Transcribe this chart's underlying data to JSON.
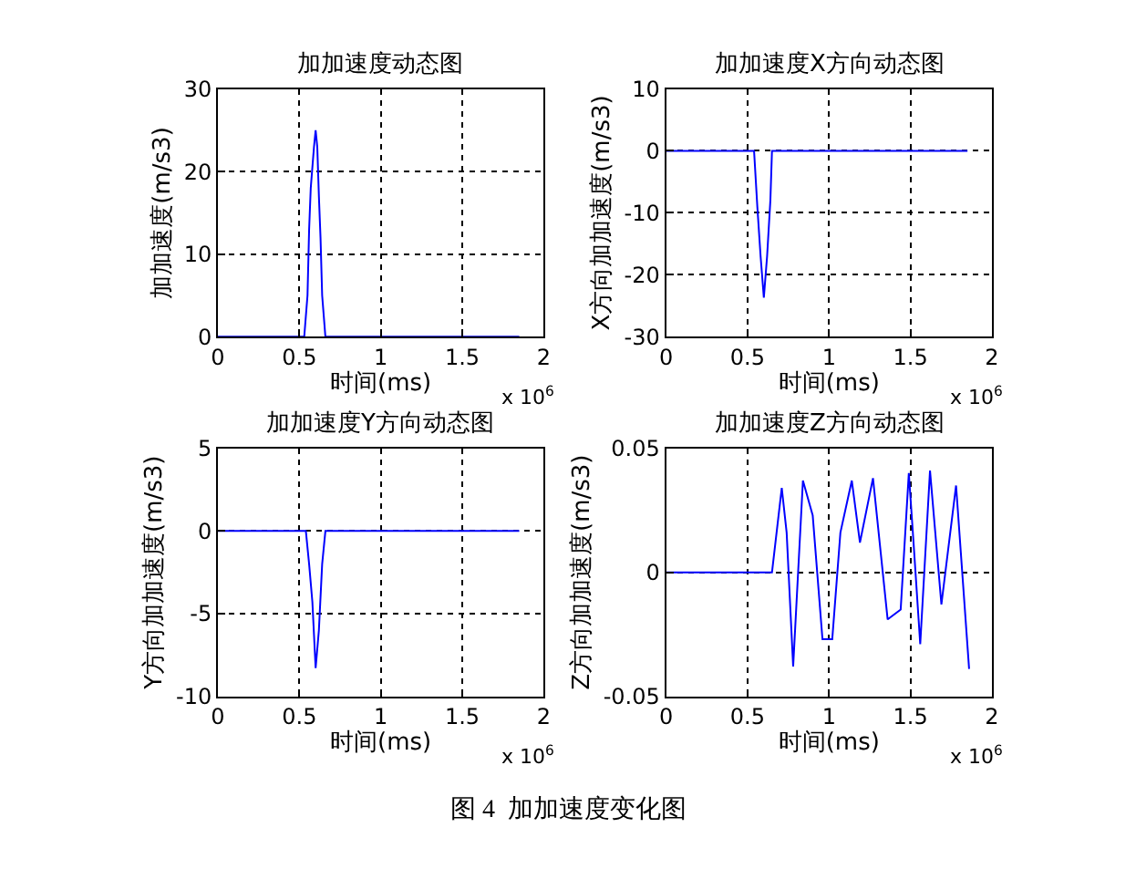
{
  "chart_data": [
    {
      "type": "line",
      "title": "加加速度动态图",
      "xlabel": "时间(ms)",
      "ylabel": "加加速度(m/s3)",
      "x": [
        0,
        0.53,
        0.55,
        0.56,
        0.57,
        0.59,
        0.6,
        0.61,
        0.62,
        0.63,
        0.64,
        0.66,
        1.85
      ],
      "series": [
        {
          "color": "#0000ff",
          "values": [
            0,
            0,
            5,
            13,
            18,
            23,
            25,
            23,
            17,
            12,
            5,
            0,
            0
          ]
        }
      ],
      "xlim": [
        0,
        2
      ],
      "xticks": [
        0,
        0.5,
        1,
        1.5,
        2
      ],
      "ylim": [
        0,
        30
      ],
      "yticks": [
        0,
        10,
        20,
        30
      ],
      "grid": true,
      "annotations": [
        "x 10$^{6}$"
      ]
    },
    {
      "type": "line",
      "title": "加加速度X方向动态图",
      "xlabel": "时间(ms)",
      "ylabel": "X方向加加速度(m/s3)",
      "x": [
        0,
        0.54,
        0.56,
        0.58,
        0.6,
        0.62,
        0.64,
        0.65,
        1.85
      ],
      "series": [
        {
          "color": "#0000ff",
          "values": [
            0,
            0,
            -9,
            -17,
            -23.7,
            -17,
            -8,
            0,
            0
          ]
        }
      ],
      "xlim": [
        0,
        2
      ],
      "xticks": [
        0,
        0.5,
        1,
        1.5,
        2
      ],
      "ylim": [
        -30,
        10
      ],
      "yticks": [
        -30,
        -20,
        -10,
        0,
        10
      ],
      "grid": true,
      "annotations": [
        "x 10$^{6}$"
      ]
    },
    {
      "type": "line",
      "title": "加加速度Y方向动态图",
      "xlabel": "时间(ms)",
      "ylabel": "Y方向加加速度(m/s3)",
      "x": [
        0,
        0.54,
        0.56,
        0.58,
        0.6,
        0.62,
        0.64,
        0.66,
        1.85
      ],
      "series": [
        {
          "color": "#0000ff",
          "values": [
            0,
            0,
            -2,
            -4.3,
            -8.3,
            -6,
            -2,
            0,
            0
          ]
        }
      ],
      "xlim": [
        0,
        2
      ],
      "xticks": [
        0,
        0.5,
        1,
        1.5,
        2
      ],
      "ylim": [
        -10,
        5
      ],
      "yticks": [
        -10,
        -5,
        0,
        5
      ],
      "grid": true,
      "annotations": [
        "x 10$^{6}$"
      ]
    },
    {
      "type": "line",
      "title": "加加速度Z方向动态图",
      "xlabel": "时间(ms)",
      "ylabel": "Z方向加加速度(m/s3)",
      "x": [
        0,
        0.65,
        0.71,
        0.74,
        0.78,
        0.84,
        0.9,
        0.96,
        1.02,
        1.07,
        1.14,
        1.19,
        1.27,
        1.36,
        1.44,
        1.49,
        1.52,
        1.56,
        1.62,
        1.69,
        1.78,
        1.86
      ],
      "series": [
        {
          "color": "#0000ff",
          "values": [
            0,
            0,
            0.034,
            0.016,
            -0.038,
            0.037,
            0.023,
            -0.027,
            -0.027,
            0.016,
            0.037,
            0.012,
            0.038,
            -0.019,
            -0.015,
            0.04,
            0.011,
            -0.029,
            0.041,
            -0.013,
            0.035,
            -0.039
          ]
        }
      ],
      "xlim": [
        0,
        2
      ],
      "xticks": [
        0,
        0.5,
        1,
        1.5,
        2
      ],
      "ylim": [
        -0.05,
        0.05
      ],
      "yticks": [
        -0.05,
        0,
        0.05
      ],
      "grid": true,
      "annotations": [
        "x 10$^{6}$",
        "图 4  加加速度变化图"
      ]
    }
  ]
}
